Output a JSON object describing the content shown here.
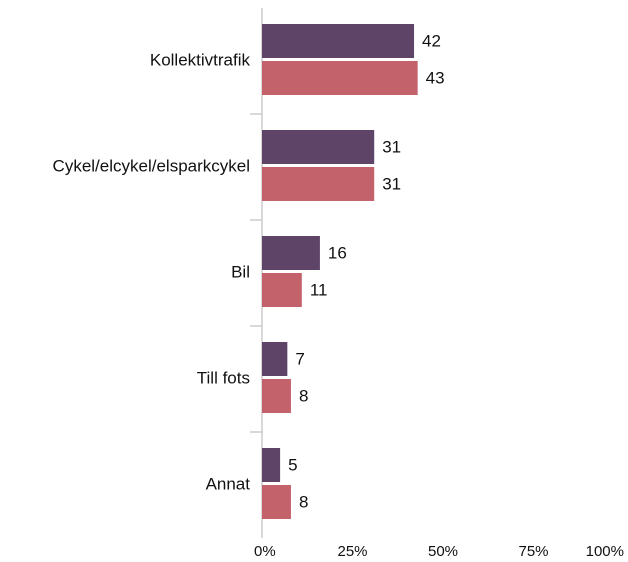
{
  "chart_data": {
    "type": "bar",
    "orientation": "horizontal",
    "categories": [
      "Kollektivtrafik",
      "Cykel/elcykel/elsparkcykel",
      "Bil",
      "Till fots",
      "Annat"
    ],
    "series": [
      {
        "color": "#5e4466",
        "values": [
          42,
          31,
          16,
          7,
          5
        ]
      },
      {
        "color": "#c4626c",
        "values": [
          43,
          31,
          11,
          8,
          8
        ]
      }
    ],
    "xlim": [
      0,
      100
    ],
    "xticks": [
      {
        "value": 0,
        "label": "0%"
      },
      {
        "value": 25,
        "label": "25%"
      },
      {
        "value": 50,
        "label": "50%"
      },
      {
        "value": 75,
        "label": "75%"
      },
      {
        "value": 100,
        "label": "100%"
      }
    ],
    "grid": false
  }
}
